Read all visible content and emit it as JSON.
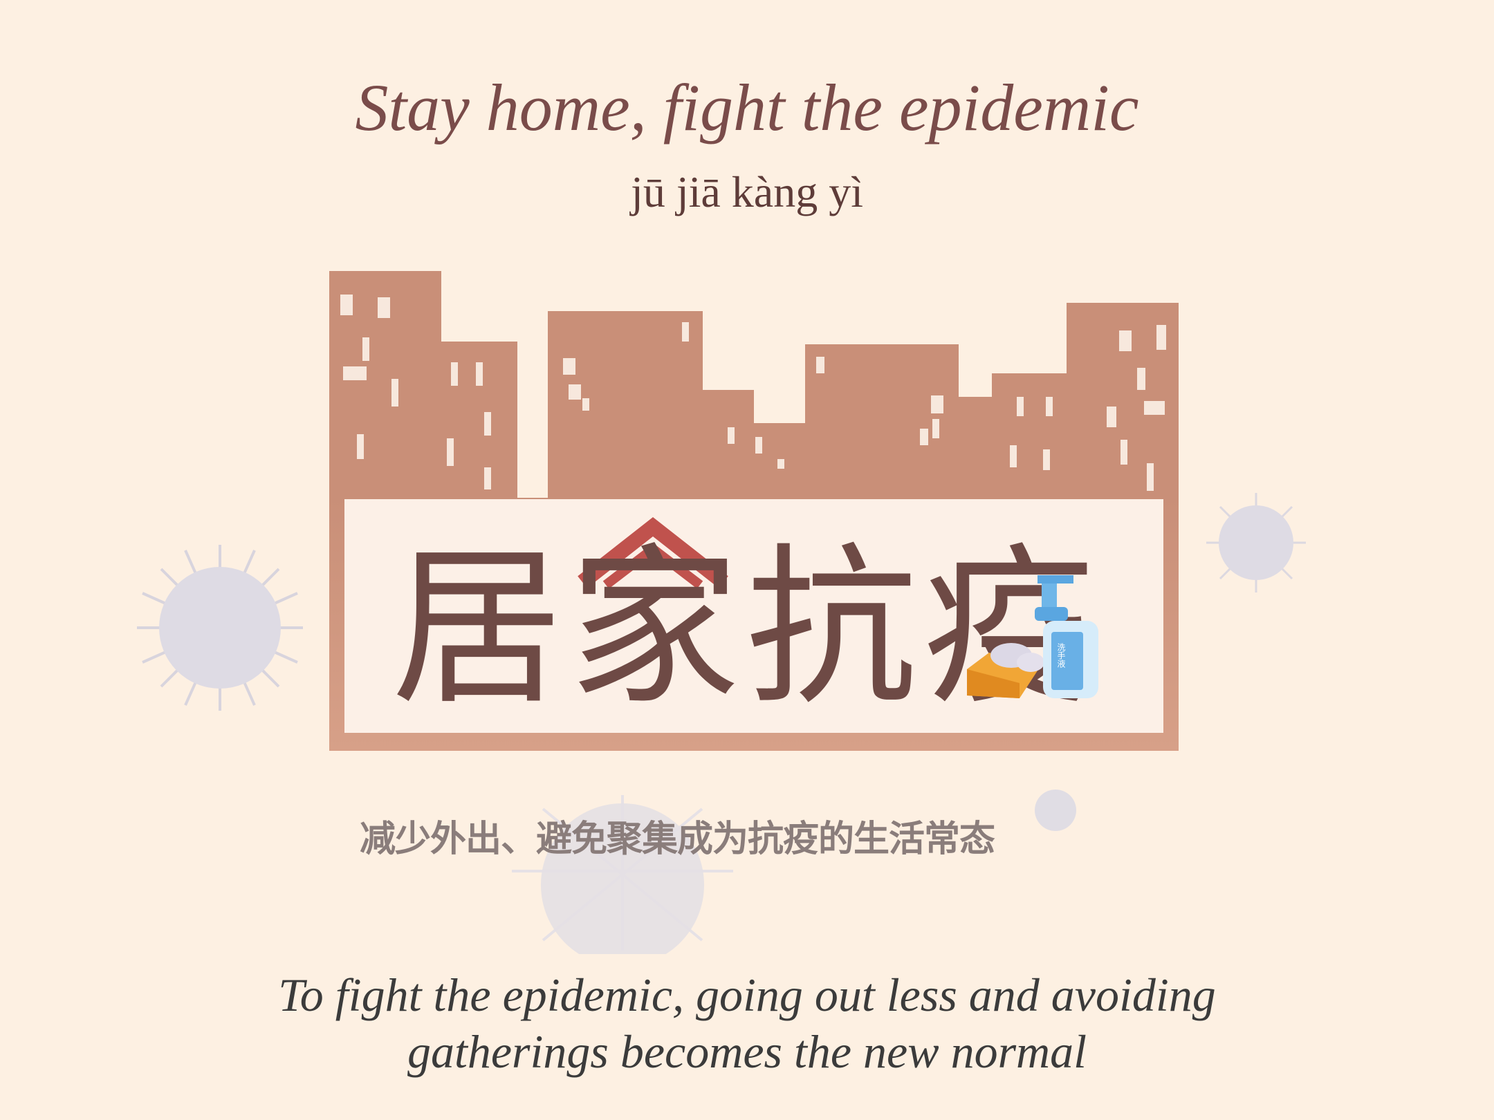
{
  "title": "Stay home, fight the epidemic",
  "pinyin": "jū jiā kàng yì",
  "illustration": {
    "main_characters": "居家抗疫",
    "chinese_subtitle": "减少外出、避免聚集成为抗疫的生活常态",
    "bottle_label": "洗手液",
    "icons": [
      "city-skyline-icon",
      "house-roof-icon",
      "hand-sanitizer-icon",
      "soap-bar-icon",
      "virus-icon"
    ]
  },
  "translation": {
    "line1": "To fight the epidemic, going out less and avoiding",
    "line2": "gatherings becomes the new normal"
  },
  "colors": {
    "background": "#fdf0e2",
    "buildings": "#c98f78",
    "title": "#7a4c4a",
    "characters": "#6e4a45",
    "roof": "#c0524d",
    "virus": "#dcdae4"
  }
}
